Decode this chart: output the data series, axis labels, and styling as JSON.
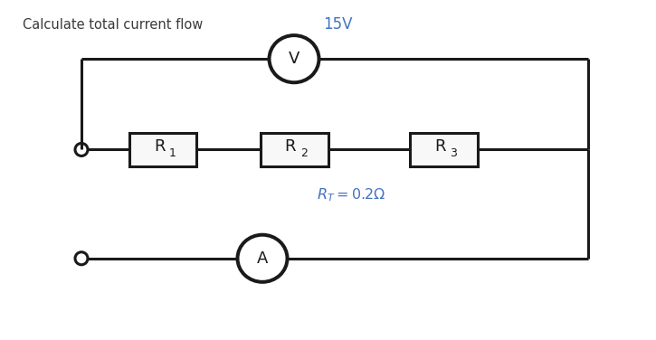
{
  "title": "Calculate total current flow",
  "title_fontsize": 10.5,
  "title_color": "#3a3a3a",
  "voltage_label": "15V",
  "voltage_label_color": "#4472c4",
  "rt_label": "$R_T = 0.2\\Omega$",
  "rt_label_color": "#4472c4",
  "r1_label": "R",
  "r1_sub": "1",
  "r2_label": "R",
  "r2_sub": "2",
  "r3_label": "R",
  "r3_sub": "3",
  "v_label": "V",
  "a_label": "A",
  "bg_color": "#ffffff",
  "line_color": "#1a1a1a",
  "box_facecolor": "#f8f8f8",
  "circle_facecolor": "#ffffff",
  "lw": 2.2,
  "fig_width": 7.25,
  "fig_height": 3.76,
  "dpi": 100,
  "xlim": [
    0,
    14.5
  ],
  "ylim": [
    0,
    7.5
  ]
}
